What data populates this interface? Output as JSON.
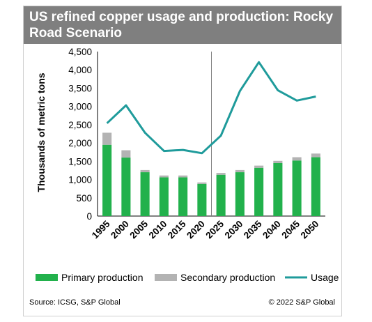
{
  "title": "US refined copper usage and production: Rocky Road Scenario",
  "footer": {
    "source": "Source: ICSG, S&P Global",
    "copyright": "© 2022 S&P Global"
  },
  "colors": {
    "primary": "#22b14c",
    "secondary": "#b3b3b3",
    "usage": "#1f9b9b",
    "title_bg": "#7f7f7f"
  },
  "chart_data": {
    "type": "bar",
    "categories": [
      "1995",
      "2000",
      "2005",
      "2010",
      "2015",
      "2020",
      "2025",
      "2030",
      "2035",
      "2040",
      "2045",
      "2050"
    ],
    "ylabel": "Thousands of metric tons",
    "ylim": [
      0,
      4500
    ],
    "yticks": [
      "0",
      "500",
      "1,000",
      "1,500",
      "2,000",
      "2,500",
      "3,000",
      "3,500",
      "4,000",
      "4,500"
    ],
    "series": [
      {
        "name": "Primary production",
        "kind": "bar",
        "values": [
          1950,
          1600,
          1200,
          1060,
          1060,
          880,
          1130,
          1200,
          1320,
          1450,
          1520,
          1610
        ]
      },
      {
        "name": "Secondary production",
        "kind": "stacked-bar",
        "values": [
          330,
          200,
          60,
          50,
          50,
          40,
          50,
          60,
          60,
          60,
          90,
          100
        ]
      },
      {
        "name": "Usage",
        "kind": "line",
        "values": [
          2540,
          3030,
          2280,
          1780,
          1810,
          1720,
          2200,
          3420,
          4210,
          3440,
          3160,
          3270
        ]
      }
    ],
    "divider_after": "2020",
    "legend_position": "bottom"
  }
}
